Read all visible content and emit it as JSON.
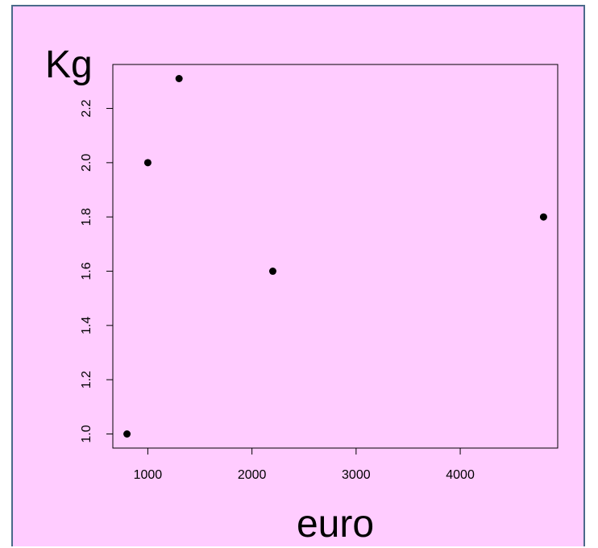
{
  "chart_data": {
    "type": "scatter",
    "title": "",
    "xlabel": "euro",
    "ylabel": "Kg",
    "x": [
      800,
      1000,
      1300,
      2200,
      4800
    ],
    "y": [
      1.0,
      2.0,
      2.31,
      1.6,
      1.8
    ],
    "xlim": [
      664,
      4936
    ],
    "ylim": [
      0.948,
      2.362
    ],
    "xticks": [
      1000,
      2000,
      3000,
      4000
    ],
    "xtick_labels": [
      "1000",
      "2000",
      "3000",
      "4000"
    ],
    "yticks": [
      1.0,
      1.2,
      1.4,
      1.6,
      1.8,
      2.0,
      2.2
    ],
    "ytick_labels": [
      "1.0",
      "1.2",
      "1.4",
      "1.6",
      "1.8",
      "2.0",
      "2.2"
    ],
    "grid": false,
    "legend": "none"
  },
  "colors": {
    "background": "#ffccff",
    "frame_border": "#4a6a8a",
    "points": "#000000",
    "axes": "#000000"
  }
}
